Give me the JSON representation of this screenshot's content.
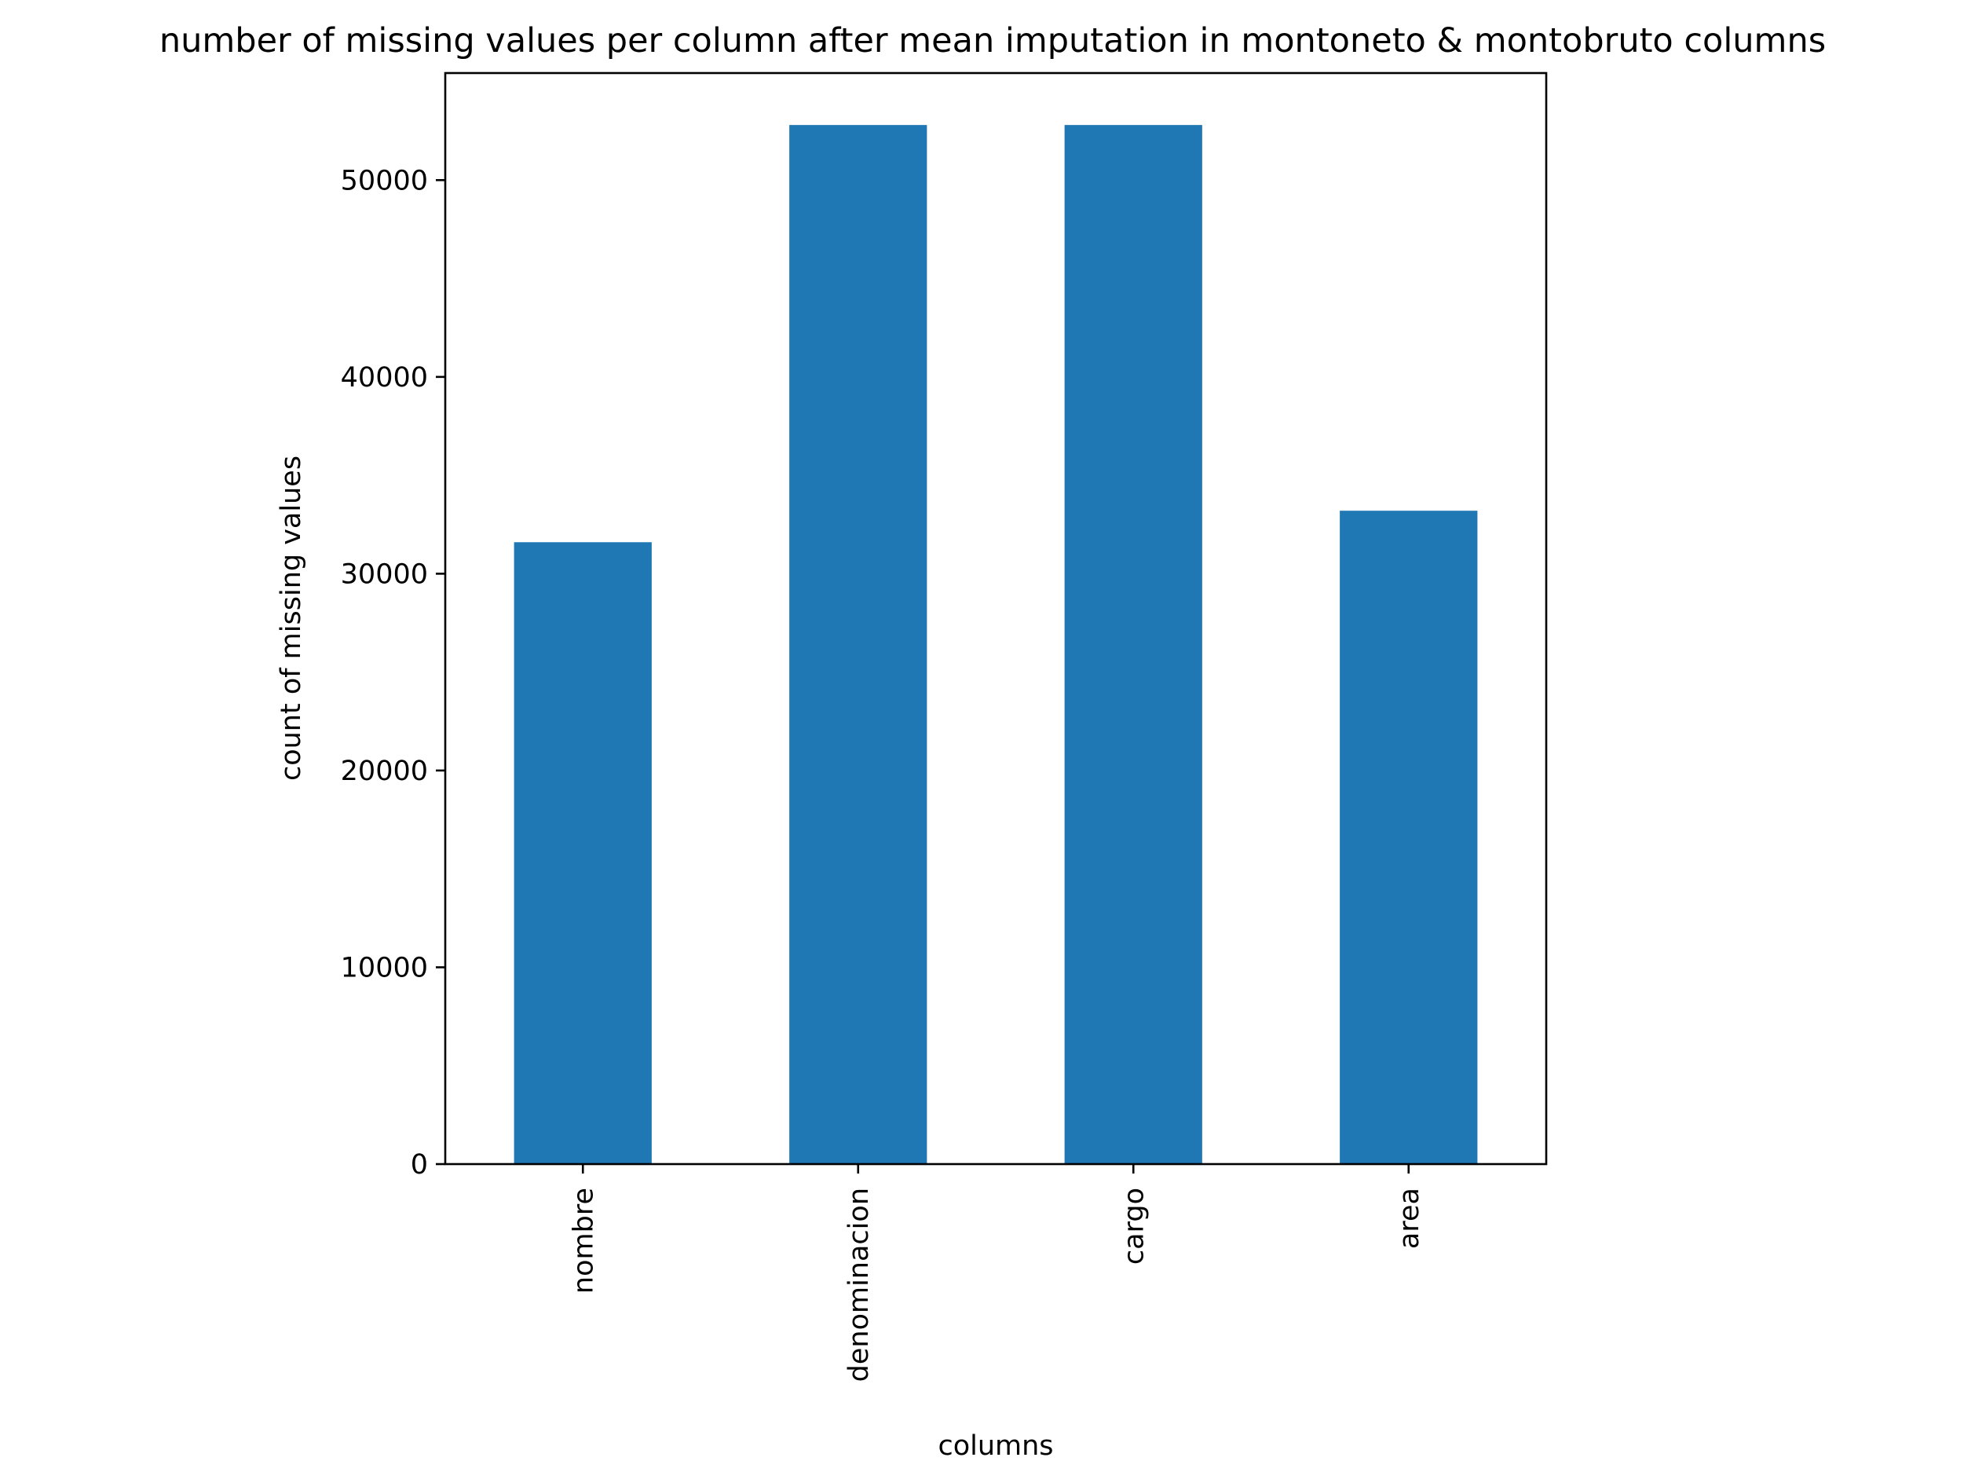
{
  "chart_data": {
    "type": "bar",
    "title": "number of missing values per column after mean imputation in montoneto & montobruto columns",
    "xlabel": "columns",
    "ylabel": "count of missing values",
    "categories": [
      "nombre",
      "denominacion",
      "cargo",
      "area"
    ],
    "values": [
      31600,
      52800,
      52800,
      33200
    ],
    "ylim": [
      0,
      55440
    ],
    "yticks": [
      0,
      10000,
      20000,
      30000,
      40000,
      50000
    ],
    "x_tick_rotation": "vertical",
    "grid": false,
    "legend": "none",
    "bar_color": "#1f77b4"
  }
}
